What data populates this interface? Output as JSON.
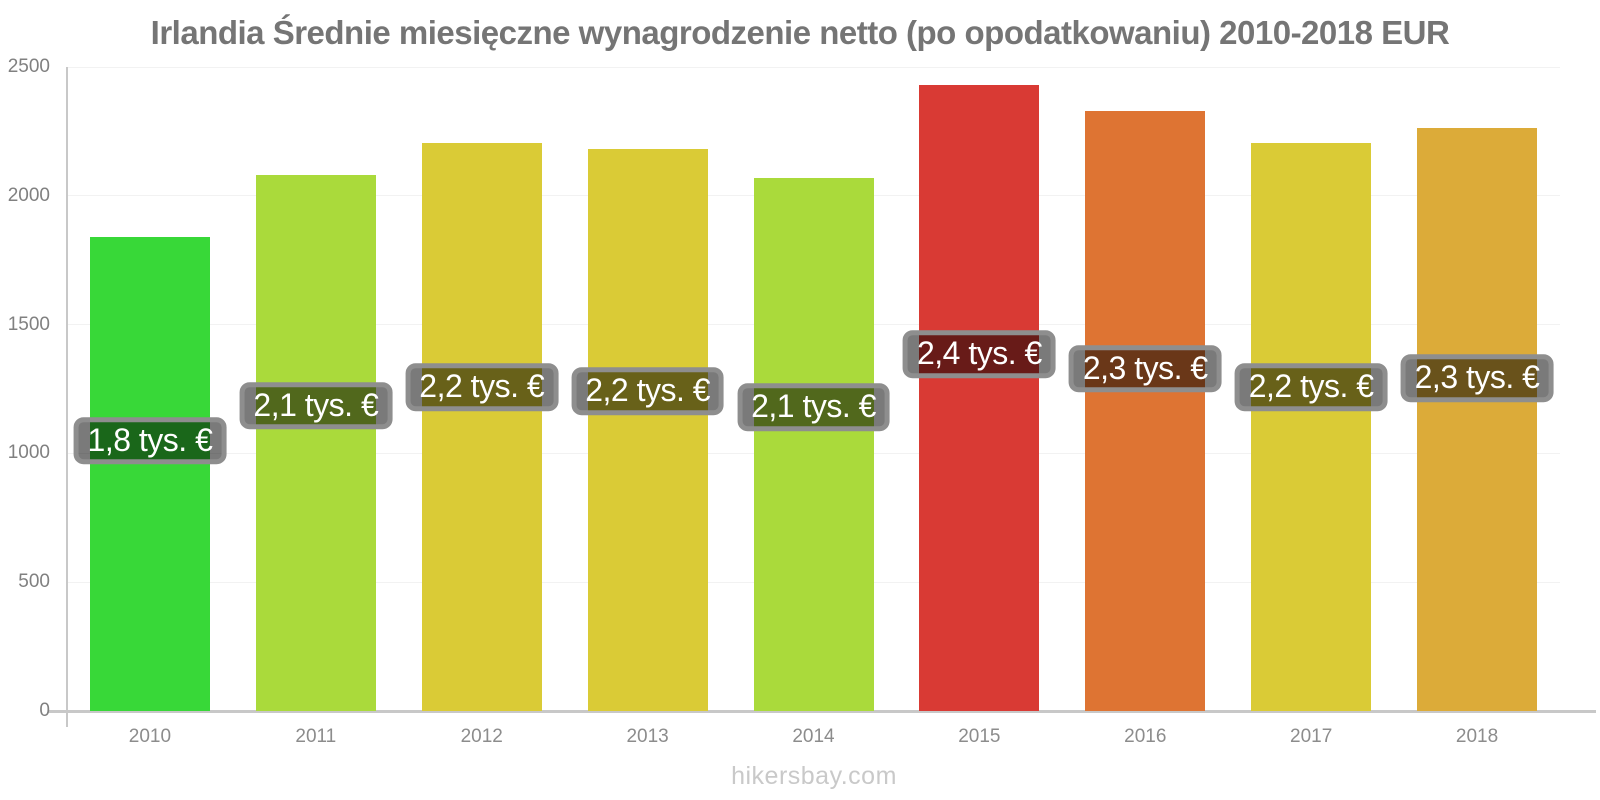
{
  "page": {
    "watermark": "hikersbay.com"
  },
  "chart_data": {
    "type": "bar",
    "title": "Irlandia Średnie miesięczne wynagrodzenie netto (po opodatkowaniu) 2010-2018 EUR",
    "categories": [
      "2010",
      "2011",
      "2012",
      "2013",
      "2014",
      "2015",
      "2016",
      "2017",
      "2018"
    ],
    "values": [
      1840,
      2080,
      2205,
      2180,
      2070,
      2430,
      2330,
      2205,
      2265
    ],
    "bar_labels": [
      "1,8 tys. €",
      "2,1 tys. €",
      "2,2 tys. €",
      "2,2 tys. €",
      "2,1 tys. €",
      "2,4 tys. €",
      "2,3 tys. €",
      "2,2 tys. €",
      "2,3 tys. €"
    ],
    "bar_colors": [
      "#38d838",
      "#aada3b",
      "#dacb36",
      "#dacb36",
      "#aada3b",
      "#d93a34",
      "#de7433",
      "#dacb36",
      "#dcab39"
    ],
    "xlabel": "",
    "ylabel": "",
    "ylim": [
      0,
      2500
    ],
    "yticks": [
      0,
      500,
      1000,
      1500,
      2000,
      2500
    ],
    "ytick_labels": [
      "0",
      "500",
      "1000",
      "1500",
      "2000",
      "2500"
    ],
    "grid": "horizontal-faint",
    "legend": "none",
    "colors": {
      "title_text": "#757575",
      "axis": "#c8c8c8",
      "tick_text": "#8c8c8c",
      "gridline": "#f2f2f2",
      "label_box_bg": "rgba(0,0,0,0.52)",
      "label_box_border": "#8e8e8e",
      "label_text": "#ffffff",
      "background": "#ffffff"
    }
  }
}
